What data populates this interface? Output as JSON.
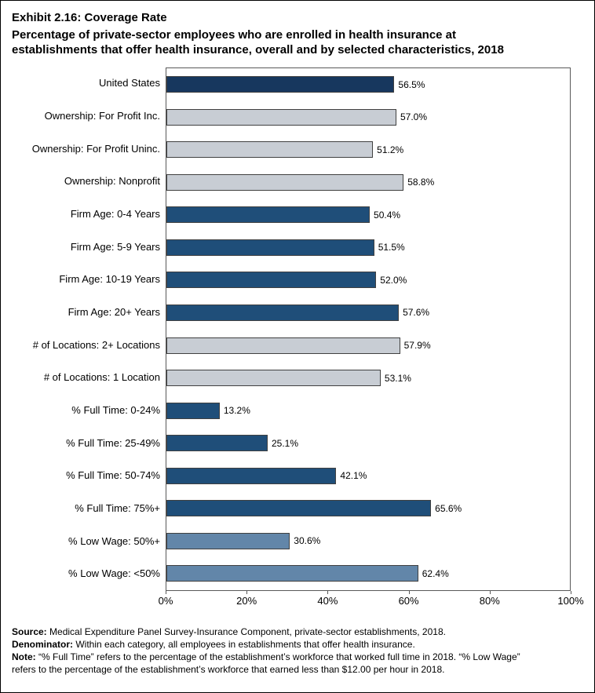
{
  "title": "Exhibit 2.16: Coverage Rate",
  "subtitle": "Percentage of private-sector employees who are enrolled in health insurance at\nestablishments that offer health insurance, overall and by selected characteristics, 2018",
  "chart_data": {
    "type": "bar",
    "orientation": "horizontal",
    "title": "Exhibit 2.16: Coverage Rate",
    "categories": [
      "United States",
      "Ownership: For Profit Inc.",
      "Ownership: For Profit Uninc.",
      "Ownership: Nonprofit",
      "Firm Age: 0-4 Years",
      "Firm Age: 5-9 Years",
      "Firm Age: 10-19 Years",
      "Firm Age: 20+ Years",
      "# of Locations: 2+ Locations",
      "# of Locations: 1 Location",
      "% Full Time: 0-24%",
      "% Full Time: 25-49%",
      "% Full Time: 50-74%",
      "% Full Time: 75%+",
      "% Low Wage: 50%+",
      "% Low Wage: <50%"
    ],
    "values": [
      56.5,
      57.0,
      51.2,
      58.8,
      50.4,
      51.5,
      52.0,
      57.6,
      57.9,
      53.1,
      13.2,
      25.1,
      42.1,
      65.6,
      30.6,
      62.4
    ],
    "value_labels": [
      "56.5%",
      "57.0%",
      "51.2%",
      "58.8%",
      "50.4%",
      "51.5%",
      "52.0%",
      "57.6%",
      "57.9%",
      "53.1%",
      "13.2%",
      "25.1%",
      "42.1%",
      "65.6%",
      "30.6%",
      "62.4%"
    ],
    "bar_color_keys": [
      "navy",
      "silver",
      "silver",
      "silver",
      "blue",
      "blue",
      "blue",
      "blue",
      "silver",
      "silver",
      "blue",
      "blue",
      "blue",
      "blue",
      "steel",
      "steel"
    ],
    "palette": {
      "navy": "#17375E",
      "silver": "#C8CDD4",
      "blue": "#1F4E79",
      "steel": "#6286A9",
      "bar_border": "#404040"
    },
    "xlabel": "",
    "ylabel": "",
    "xlim": [
      0,
      100
    ],
    "x_tick_labels": [
      "0%",
      "20%",
      "40%",
      "60%",
      "80%",
      "100%"
    ],
    "grid": false,
    "legend": false
  },
  "footer": {
    "source_label": "Source:",
    "source_text": " Medical Expenditure Panel Survey-Insurance Component, private-sector establishments, 2018.",
    "denominator_label": "Denominator:",
    "denominator_text": " Within each category, all employees in establishments that offer health insurance.",
    "note_label": "Note:",
    "note_text": " “% Full Time” refers to the percentage of the establishment’s workforce that worked full time in 2018. “% Low Wage”\nrefers to the percentage of the establishment’s workforce that earned less than $12.00 per hour in 2018."
  }
}
